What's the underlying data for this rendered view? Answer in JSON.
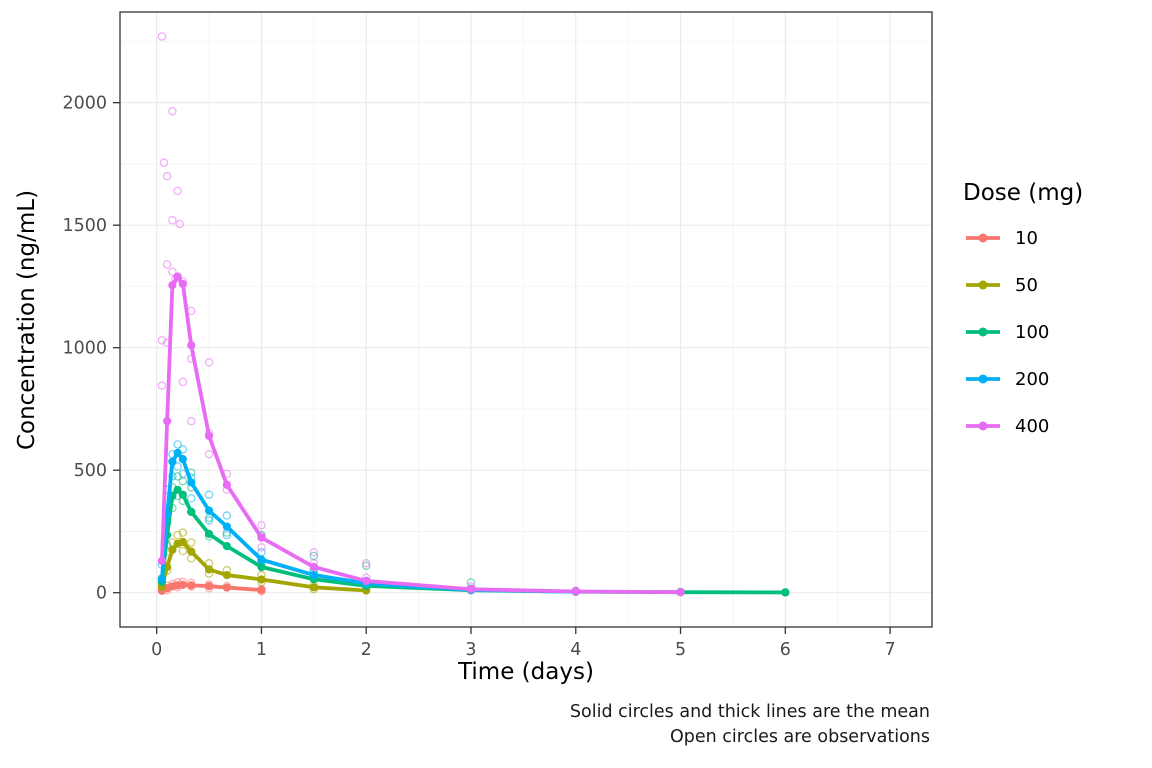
{
  "chart_data": {
    "type": "line+scatter",
    "title": "",
    "xlabel": "Time (days)",
    "ylabel": "Concentration (ng/mL)",
    "legend_title": "Dose (mg)",
    "legend_position": "right",
    "grid": true,
    "xlim": [
      -0.35,
      7.4
    ],
    "ylim": [
      -140,
      2370
    ],
    "x_ticks": [
      0,
      1,
      2,
      3,
      4,
      5,
      6,
      7
    ],
    "y_ticks": [
      0,
      500,
      1000,
      1500,
      2000
    ],
    "caption": [
      "Solid circles and thick lines are the mean",
      "Open circles are observations"
    ],
    "series": [
      {
        "name": "10",
        "color": "#F8766D",
        "mean": [
          [
            0.05,
            8
          ],
          [
            0.1,
            18
          ],
          [
            0.15,
            26
          ],
          [
            0.2,
            30
          ],
          [
            0.25,
            32
          ],
          [
            0.33,
            30
          ],
          [
            0.5,
            27
          ],
          [
            0.67,
            21
          ],
          [
            1,
            11
          ]
        ],
        "observations": [
          [
            0.05,
            12
          ],
          [
            0.08,
            20
          ],
          [
            0.1,
            28
          ],
          [
            0.1,
            10
          ],
          [
            0.15,
            36
          ],
          [
            0.2,
            42
          ],
          [
            0.2,
            22
          ],
          [
            0.25,
            44
          ],
          [
            0.33,
            40
          ],
          [
            0.33,
            25
          ],
          [
            0.5,
            34
          ],
          [
            0.5,
            18
          ],
          [
            0.67,
            27
          ],
          [
            1,
            15
          ],
          [
            1,
            6
          ]
        ]
      },
      {
        "name": "50",
        "color": "#A3A500",
        "mean": [
          [
            0.05,
            24
          ],
          [
            0.1,
            105
          ],
          [
            0.15,
            175
          ],
          [
            0.2,
            200
          ],
          [
            0.25,
            207
          ],
          [
            0.33,
            168
          ],
          [
            0.5,
            95
          ],
          [
            0.67,
            72
          ],
          [
            1,
            54
          ],
          [
            1.5,
            22
          ],
          [
            2,
            9
          ]
        ],
        "observations": [
          [
            0.05,
            35
          ],
          [
            0.1,
            140
          ],
          [
            0.1,
            90
          ],
          [
            0.15,
            205
          ],
          [
            0.2,
            235
          ],
          [
            0.25,
            245
          ],
          [
            0.25,
            170
          ],
          [
            0.33,
            205
          ],
          [
            0.33,
            140
          ],
          [
            0.5,
            120
          ],
          [
            0.5,
            78
          ],
          [
            0.67,
            92
          ],
          [
            1,
            72
          ],
          [
            1,
            42
          ],
          [
            1.5,
            32
          ],
          [
            1.5,
            14
          ],
          [
            2,
            13
          ]
        ]
      },
      {
        "name": "100",
        "color": "#00BF7D",
        "mean": [
          [
            0.05,
            45
          ],
          [
            0.1,
            235
          ],
          [
            0.15,
            395
          ],
          [
            0.2,
            420
          ],
          [
            0.25,
            400
          ],
          [
            0.33,
            330
          ],
          [
            0.5,
            240
          ],
          [
            0.67,
            190
          ],
          [
            1,
            105
          ],
          [
            1.5,
            55
          ],
          [
            2,
            28
          ],
          [
            3,
            10
          ],
          [
            4,
            4
          ],
          [
            5,
            2
          ],
          [
            6,
            1
          ]
        ],
        "observations": [
          [
            0.05,
            60
          ],
          [
            0.1,
            285
          ],
          [
            0.1,
            195
          ],
          [
            0.15,
            430
          ],
          [
            0.15,
            345
          ],
          [
            0.2,
            475
          ],
          [
            0.2,
            395
          ],
          [
            0.25,
            455
          ],
          [
            0.25,
            375
          ],
          [
            0.33,
            490
          ],
          [
            0.33,
            430
          ],
          [
            0.33,
            330
          ],
          [
            0.5,
            305
          ],
          [
            0.5,
            230
          ],
          [
            0.67,
            245
          ],
          [
            1,
            235
          ],
          [
            1,
            130
          ],
          [
            1.5,
            150
          ],
          [
            1.5,
            85
          ],
          [
            2,
            110
          ],
          [
            2,
            38
          ],
          [
            3,
            42
          ],
          [
            3,
            16
          ],
          [
            4,
            7
          ],
          [
            5,
            3
          ],
          [
            6,
            2
          ]
        ]
      },
      {
        "name": "200",
        "color": "#00B0F6",
        "mean": [
          [
            0.05,
            55
          ],
          [
            0.1,
            320
          ],
          [
            0.15,
            535
          ],
          [
            0.2,
            570
          ],
          [
            0.25,
            545
          ],
          [
            0.33,
            450
          ],
          [
            0.5,
            335
          ],
          [
            0.67,
            270
          ],
          [
            1,
            135
          ],
          [
            1.5,
            72
          ],
          [
            2,
            38
          ],
          [
            3,
            11
          ],
          [
            4,
            4
          ]
        ],
        "observations": [
          [
            0.05,
            115
          ],
          [
            0.1,
            420
          ],
          [
            0.1,
            295
          ],
          [
            0.15,
            565
          ],
          [
            0.15,
            475
          ],
          [
            0.2,
            605
          ],
          [
            0.2,
            515
          ],
          [
            0.25,
            585
          ],
          [
            0.25,
            485
          ],
          [
            0.33,
            470
          ],
          [
            0.33,
            385
          ],
          [
            0.5,
            400
          ],
          [
            0.5,
            295
          ],
          [
            0.67,
            315
          ],
          [
            0.67,
            235
          ],
          [
            1,
            165
          ],
          [
            1,
            115
          ],
          [
            1.5,
            95
          ],
          [
            1.5,
            58
          ],
          [
            2,
            48
          ],
          [
            2,
            28
          ],
          [
            3,
            13
          ],
          [
            4,
            5
          ]
        ]
      },
      {
        "name": "400",
        "color": "#E76BF3",
        "mean": [
          [
            0.05,
            130
          ],
          [
            0.1,
            700
          ],
          [
            0.15,
            1255
          ],
          [
            0.2,
            1290
          ],
          [
            0.25,
            1260
          ],
          [
            0.33,
            1010
          ],
          [
            0.5,
            640
          ],
          [
            0.67,
            440
          ],
          [
            1,
            225
          ],
          [
            1.5,
            105
          ],
          [
            2,
            48
          ],
          [
            3,
            14
          ],
          [
            4,
            5
          ],
          [
            5,
            2
          ]
        ],
        "observations": [
          [
            0.05,
            2270
          ],
          [
            0.05,
            1030
          ],
          [
            0.05,
            845
          ],
          [
            0.07,
            1755
          ],
          [
            0.1,
            1700
          ],
          [
            0.1,
            1340
          ],
          [
            0.1,
            1020
          ],
          [
            0.15,
            1965
          ],
          [
            0.15,
            1520
          ],
          [
            0.15,
            1310
          ],
          [
            0.18,
            1280
          ],
          [
            0.2,
            1640
          ],
          [
            0.2,
            1290
          ],
          [
            0.22,
            1505
          ],
          [
            0.25,
            1270
          ],
          [
            0.25,
            860
          ],
          [
            0.33,
            1150
          ],
          [
            0.33,
            955
          ],
          [
            0.33,
            700
          ],
          [
            0.5,
            940
          ],
          [
            0.5,
            650
          ],
          [
            0.5,
            565
          ],
          [
            0.67,
            485
          ],
          [
            0.67,
            420
          ],
          [
            1,
            275
          ],
          [
            1,
            230
          ],
          [
            1,
            185
          ],
          [
            1.5,
            165
          ],
          [
            1.5,
            120
          ],
          [
            2,
            120
          ],
          [
            2,
            62
          ],
          [
            3,
            26
          ],
          [
            3,
            15
          ],
          [
            4,
            8
          ],
          [
            5,
            3
          ]
        ]
      }
    ]
  }
}
